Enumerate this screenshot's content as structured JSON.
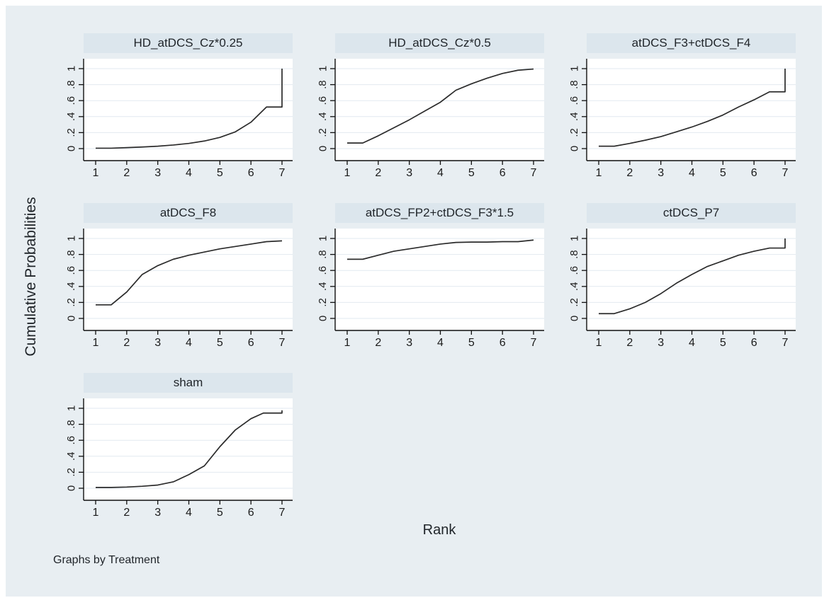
{
  "labels": {
    "y_axis": "Cumulative Probabilities",
    "x_axis": "Rank",
    "note": "Graphs by Treatment"
  },
  "colors": {
    "canvas_bg": "#e8eef2",
    "panel_title_bg": "#dce6ed",
    "plot_bg": "#ffffff",
    "grid": "#e2e9f0",
    "axis": "#0f0f0f",
    "line": "#2b2b2b",
    "text": "#1a1a1a"
  },
  "axes": {
    "xlim": [
      1,
      7
    ],
    "ylim": [
      0,
      1
    ],
    "x_ticks": [
      "1",
      "2",
      "3",
      "4",
      "5",
      "6",
      "7"
    ],
    "y_ticks": [
      {
        "v": 0,
        "label": "0"
      },
      {
        "v": 0.2,
        "label": ".2"
      },
      {
        "v": 0.4,
        "label": ".4"
      },
      {
        "v": 0.6,
        "label": ".6"
      },
      {
        "v": 0.8,
        "label": ".8"
      },
      {
        "v": 1,
        "label": "1"
      }
    ],
    "grid": "horizontal",
    "y_tick_label_angle": -90
  },
  "chart_data": [
    {
      "type": "line",
      "title": "HD_atDCS_Cz*0.25",
      "points": [
        [
          1,
          0.005
        ],
        [
          1.5,
          0.005
        ],
        [
          2,
          0.012
        ],
        [
          2.5,
          0.02
        ],
        [
          3,
          0.03
        ],
        [
          3.5,
          0.045
        ],
        [
          4,
          0.065
        ],
        [
          4.5,
          0.095
        ],
        [
          5,
          0.14
        ],
        [
          5.5,
          0.21
        ],
        [
          6,
          0.33
        ],
        [
          6.5,
          0.52
        ],
        [
          7,
          0.52
        ],
        [
          7,
          1.0
        ]
      ]
    },
    {
      "type": "line",
      "title": "HD_atDCS_Cz*0.5",
      "points": [
        [
          1,
          0.07
        ],
        [
          1.5,
          0.07
        ],
        [
          2,
          0.16
        ],
        [
          2.5,
          0.26
        ],
        [
          3,
          0.36
        ],
        [
          3.5,
          0.47
        ],
        [
          4,
          0.58
        ],
        [
          4.5,
          0.73
        ],
        [
          5,
          0.81
        ],
        [
          5.5,
          0.88
        ],
        [
          6,
          0.94
        ],
        [
          6.5,
          0.98
        ],
        [
          7,
          0.995
        ]
      ]
    },
    {
      "type": "line",
      "title": "atDCS_F3+ctDCS_F4",
      "points": [
        [
          1,
          0.03
        ],
        [
          1.5,
          0.03
        ],
        [
          2,
          0.065
        ],
        [
          2.5,
          0.105
        ],
        [
          3,
          0.15
        ],
        [
          3.5,
          0.21
        ],
        [
          4,
          0.27
        ],
        [
          4.5,
          0.34
        ],
        [
          5,
          0.42
        ],
        [
          5.5,
          0.52
        ],
        [
          6,
          0.61
        ],
        [
          6.5,
          0.71
        ],
        [
          7,
          0.71
        ],
        [
          7,
          1.0
        ]
      ]
    },
    {
      "type": "line",
      "title": "atDCS_F8",
      "points": [
        [
          1,
          0.17
        ],
        [
          1.5,
          0.17
        ],
        [
          2,
          0.33
        ],
        [
          2.5,
          0.55
        ],
        [
          3,
          0.66
        ],
        [
          3.5,
          0.74
        ],
        [
          4,
          0.79
        ],
        [
          4.5,
          0.83
        ],
        [
          5,
          0.87
        ],
        [
          5.5,
          0.9
        ],
        [
          6,
          0.93
        ],
        [
          6.5,
          0.96
        ],
        [
          7,
          0.97
        ]
      ]
    },
    {
      "type": "line",
      "title": "atDCS_FP2+ctDCS_F3*1.5",
      "points": [
        [
          1,
          0.74
        ],
        [
          1.5,
          0.74
        ],
        [
          2,
          0.79
        ],
        [
          2.5,
          0.84
        ],
        [
          3,
          0.87
        ],
        [
          3.5,
          0.9
        ],
        [
          4,
          0.93
        ],
        [
          4.5,
          0.95
        ],
        [
          5,
          0.955
        ],
        [
          5.5,
          0.955
        ],
        [
          6,
          0.96
        ],
        [
          6.5,
          0.96
        ],
        [
          7,
          0.98
        ]
      ]
    },
    {
      "type": "line",
      "title": "ctDCS_P7",
      "points": [
        [
          1,
          0.06
        ],
        [
          1.5,
          0.06
        ],
        [
          2,
          0.12
        ],
        [
          2.5,
          0.2
        ],
        [
          3,
          0.31
        ],
        [
          3.5,
          0.44
        ],
        [
          4,
          0.55
        ],
        [
          4.5,
          0.65
        ],
        [
          5,
          0.72
        ],
        [
          5.5,
          0.79
        ],
        [
          6,
          0.84
        ],
        [
          6.5,
          0.88
        ],
        [
          7,
          0.88
        ],
        [
          7,
          1.0
        ]
      ]
    },
    {
      "type": "line",
      "title": "sham",
      "points": [
        [
          1,
          0.01
        ],
        [
          1.5,
          0.01
        ],
        [
          2,
          0.015
        ],
        [
          2.5,
          0.025
        ],
        [
          3,
          0.04
        ],
        [
          3.5,
          0.08
        ],
        [
          4,
          0.17
        ],
        [
          4.5,
          0.28
        ],
        [
          5,
          0.52
        ],
        [
          5.5,
          0.73
        ],
        [
          6,
          0.87
        ],
        [
          6.4,
          0.94
        ],
        [
          7,
          0.94
        ],
        [
          7,
          0.975
        ]
      ]
    }
  ]
}
